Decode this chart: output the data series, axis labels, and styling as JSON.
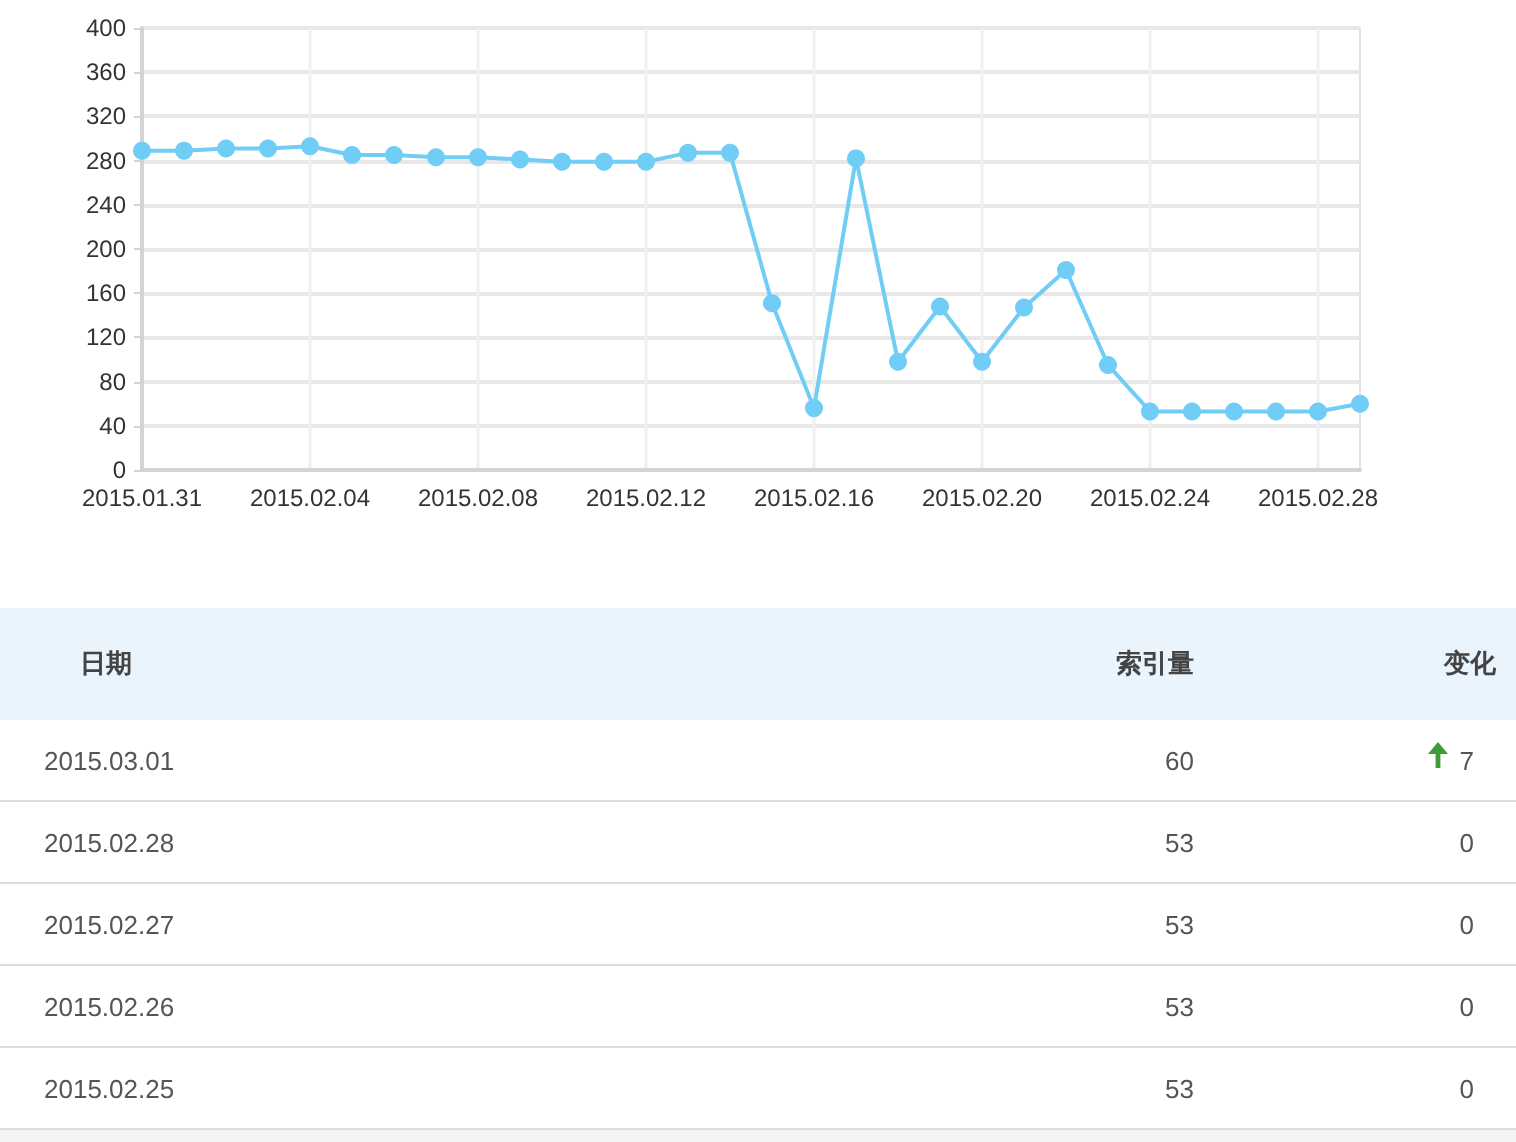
{
  "chart_data": [
    {
      "type": "line",
      "categories": [
        "2015.01.31",
        null,
        null,
        null,
        "2015.02.04",
        null,
        null,
        null,
        "2015.02.08",
        null,
        null,
        null,
        "2015.02.12",
        null,
        null,
        null,
        "2015.02.16",
        null,
        null,
        null,
        "2015.02.20",
        null,
        null,
        null,
        "2015.02.24",
        null,
        null,
        null,
        "2015.02.28",
        null
      ],
      "series": [
        {
          "color": "#70cdf6",
          "values": [
            289,
            289,
            291,
            291,
            293,
            285,
            285,
            283,
            283,
            281,
            279,
            279,
            279,
            287,
            287,
            151,
            56,
            282,
            98,
            148,
            98,
            147,
            181,
            95,
            53,
            53,
            53,
            53,
            53,
            60
          ]
        }
      ],
      "ylim": [
        0,
        400
      ],
      "yticks": [
        0,
        40,
        80,
        120,
        160,
        200,
        240,
        280,
        320,
        360,
        400
      ],
      "grid": true,
      "marker": "circle"
    },
    {
      "type": "other",
      "xlabel": "日期",
      "categories": [
        "2015.03.01",
        "2015.02.28",
        "2015.02.27",
        "2015.02.26",
        "2015.02.25"
      ],
      "series": [
        {
          "name": "索引量",
          "values": [
            60,
            53,
            53,
            53,
            53
          ]
        },
        {
          "name": "变化",
          "values": [
            7,
            0,
            0,
            0,
            0
          ]
        }
      ],
      "data_labels": true
    }
  ]
}
